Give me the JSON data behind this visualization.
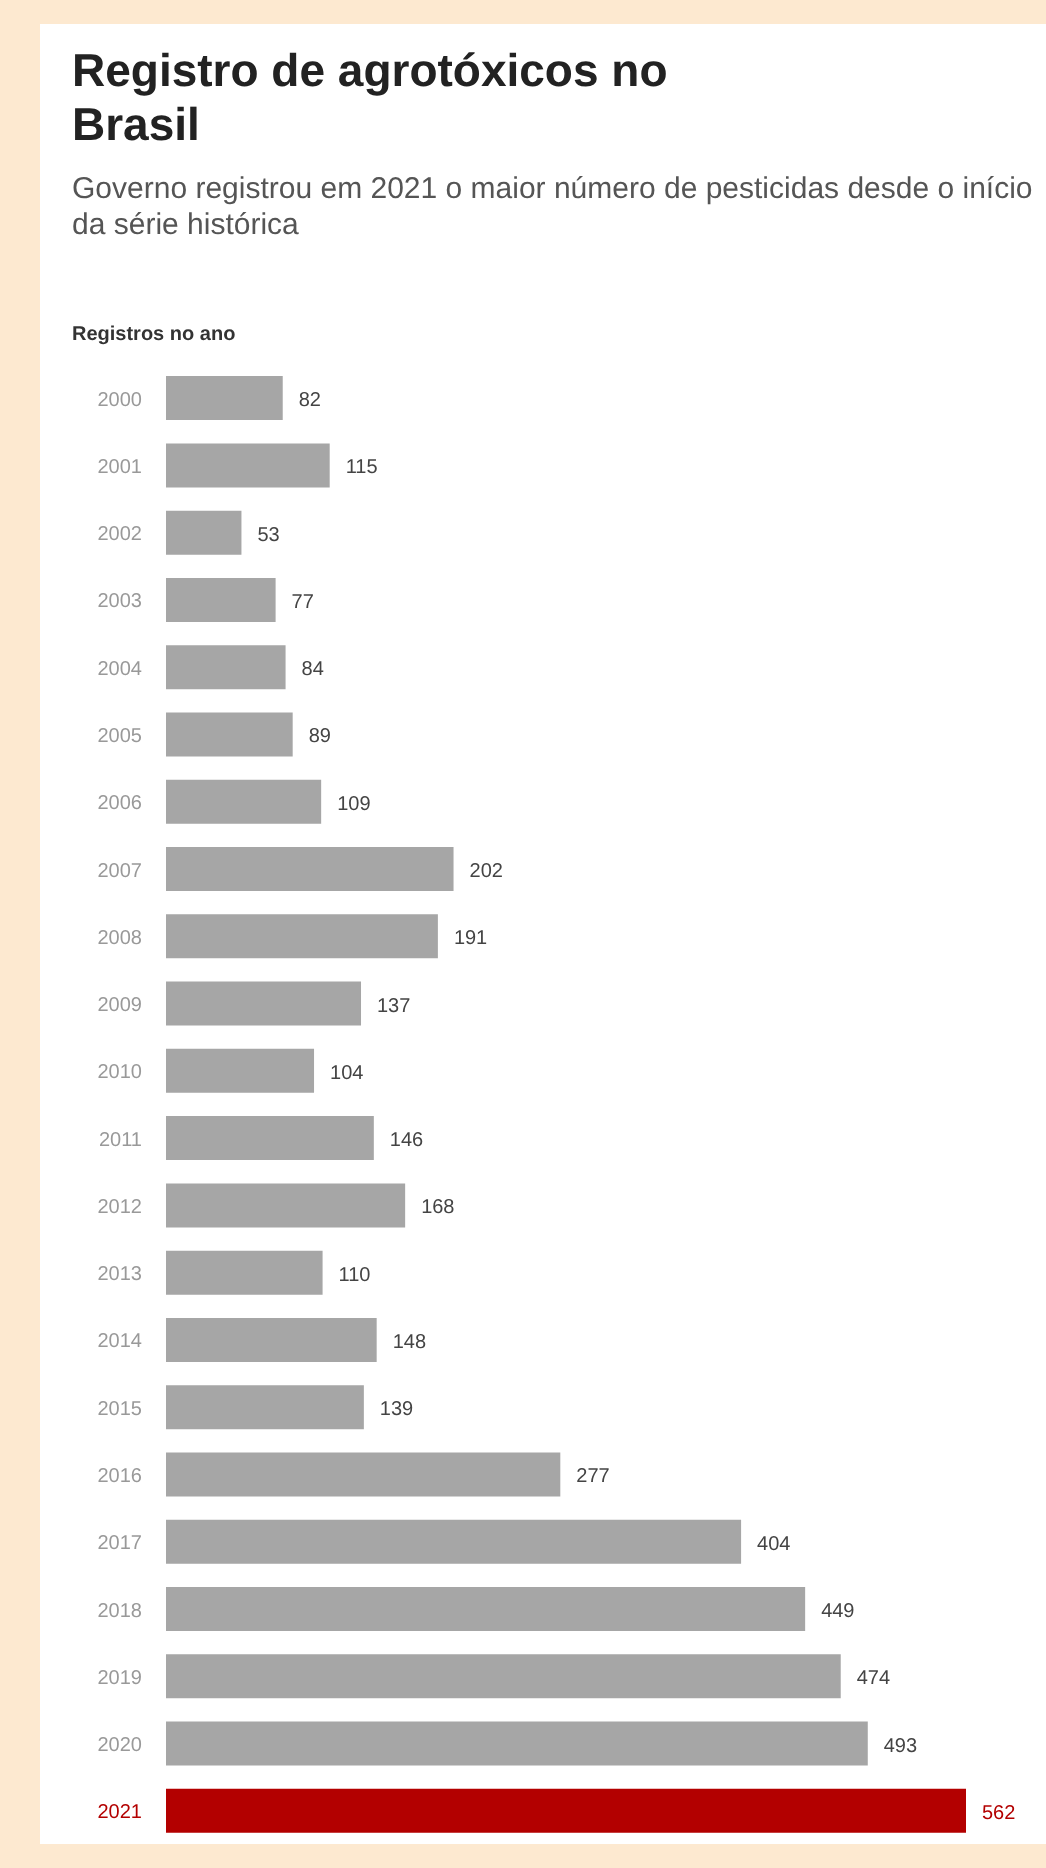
{
  "chart_data": {
    "type": "bar",
    "orientation": "horizontal",
    "title": "Registro de agrotóxicos no Brasil",
    "subtitle": "Governo registrou em 2021 o maior número de pesticidas desde o início da série histórica",
    "xlabel": "Registros no ano",
    "categories": [
      "2000",
      "2001",
      "2002",
      "2003",
      "2004",
      "2005",
      "2006",
      "2007",
      "2008",
      "2009",
      "2010",
      "2011",
      "2012",
      "2013",
      "2014",
      "2015",
      "2016",
      "2017",
      "2018",
      "2019",
      "2020",
      "2021"
    ],
    "values": [
      82,
      115,
      53,
      77,
      84,
      89,
      109,
      202,
      191,
      137,
      104,
      146,
      168,
      110,
      148,
      139,
      277,
      404,
      449,
      474,
      493,
      562
    ],
    "colors": [
      "#a6a6a6",
      "#a6a6a6",
      "#a6a6a6",
      "#a6a6a6",
      "#a6a6a6",
      "#a6a6a6",
      "#a6a6a6",
      "#a6a6a6",
      "#a6a6a6",
      "#a6a6a6",
      "#a6a6a6",
      "#a6a6a6",
      "#a6a6a6",
      "#a6a6a6",
      "#a6a6a6",
      "#a6a6a6",
      "#a6a6a6",
      "#a6a6a6",
      "#a6a6a6",
      "#a6a6a6",
      "#a6a6a6",
      "#b30000"
    ],
    "data_labels": true,
    "grid": false,
    "legend": false
  }
}
